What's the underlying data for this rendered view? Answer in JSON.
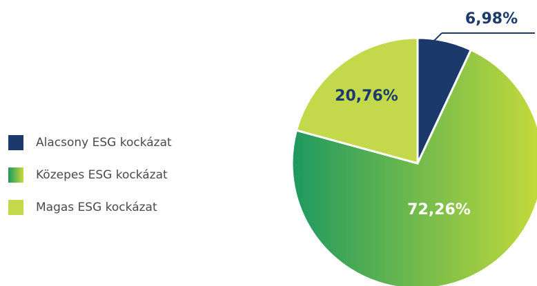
{
  "chart_data": {
    "type": "pie",
    "categories": [
      "Alacsony ESG kockázat",
      "Közepes ESG kockázat",
      "Magas ESG kockázat"
    ],
    "values": [
      6.98,
      72.26,
      20.76
    ],
    "value_labels": [
      "6,98%",
      "72,26%",
      "20,76%"
    ],
    "colors": [
      "#1b3a6b",
      "#1e9960",
      "#c3d84a"
    ]
  }
}
